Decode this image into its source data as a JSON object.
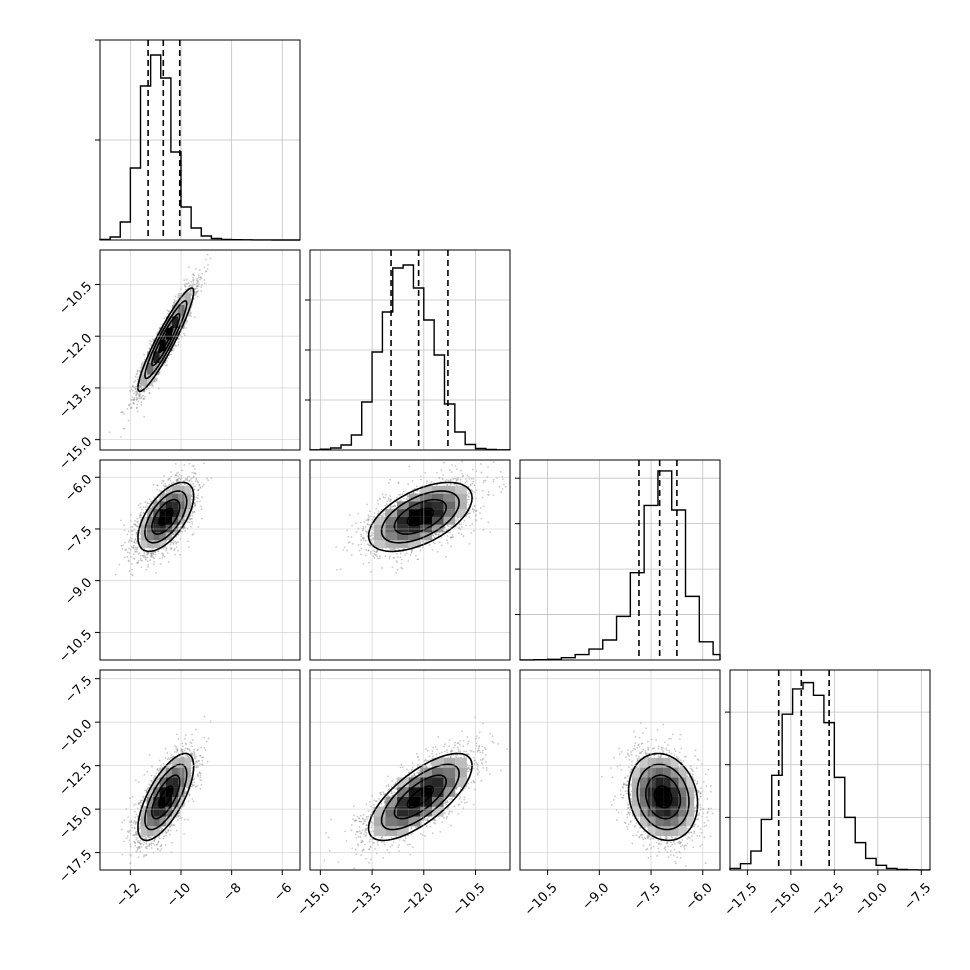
{
  "chart_data": {
    "type": "corner",
    "n_params": 4,
    "grid": true,
    "colors": {
      "ink": "#000000",
      "grid": "#c0c0c0",
      "samples": "#8a8a8a"
    },
    "params": [
      {
        "range": [
          -13.2,
          -5.3
        ],
        "ticks": [
          -12,
          -10,
          -8,
          -6
        ],
        "tick_labels": [
          "−12",
          "−10",
          "−8",
          "−6"
        ],
        "mean": -10.6,
        "sd": 0.55,
        "quantiles": [
          -11.3,
          -10.7,
          -10.05
        ]
      },
      {
        "range": [
          -15.3,
          -9.5
        ],
        "ticks": [
          -15.0,
          -13.5,
          -12.0,
          -10.5
        ],
        "tick_labels": [
          "−15.0",
          "−13.5",
          "−12.0",
          "−10.5"
        ],
        "mean": -12.1,
        "sd": 0.75,
        "quantiles": [
          -12.95,
          -12.15,
          -11.3
        ]
      },
      {
        "range": [
          -11.3,
          -5.5
        ],
        "ticks": [
          -10.5,
          -9.0,
          -7.5,
          -6.0
        ],
        "tick_labels": [
          "−10.5",
          "−9.0",
          "−7.5",
          "−6.0"
        ],
        "mean": -7.15,
        "sd": 0.5,
        "quantiles": [
          -7.85,
          -7.25,
          -6.75
        ]
      },
      {
        "range": [
          -18.5,
          -7.0
        ],
        "ticks": [
          -17.5,
          -15.0,
          -12.5,
          -10.0,
          -7.5
        ],
        "tick_labels": [
          "−17.5",
          "−15.0",
          "−12.5",
          "−10.0",
          "−7.5"
        ],
        "mean": -14.3,
        "sd": 1.25,
        "quantiles": [
          -15.7,
          -14.4,
          -12.8
        ]
      }
    ],
    "histograms": [
      {
        "param": 0,
        "edges": [
          -13.2,
          -12.8,
          -12.4,
          -12.0,
          -11.6,
          -11.2,
          -10.8,
          -10.4,
          -10.0,
          -9.6,
          -9.2,
          -8.8,
          -8.4,
          -8.0,
          -7.6,
          -7.2,
          -6.8,
          -6.4,
          -6.0,
          -5.6,
          -5.3
        ],
        "counts": [
          5,
          30,
          180,
          720,
          1540,
          1850,
          1620,
          880,
          330,
          120,
          40,
          15,
          6,
          3,
          2,
          1,
          1,
          0,
          0,
          0
        ],
        "ymax": 2000,
        "yticks": [
          1000,
          2000
        ]
      },
      {
        "param": 1,
        "edges": [
          -15.3,
          -15.0,
          -14.7,
          -14.4,
          -14.1,
          -13.8,
          -13.5,
          -13.2,
          -12.9,
          -12.6,
          -12.3,
          -12.0,
          -11.7,
          -11.4,
          -11.1,
          -10.8,
          -10.5,
          -10.2,
          -9.9,
          -9.5
        ],
        "counts": [
          2,
          8,
          20,
          50,
          150,
          480,
          980,
          1380,
          1820,
          1850,
          1620,
          1300,
          950,
          460,
          180,
          55,
          15,
          5,
          2
        ],
        "ymax": 2000,
        "yticks": [
          500,
          1000,
          1500
        ]
      },
      {
        "param": 2,
        "edges": [
          -11.3,
          -10.9,
          -10.5,
          -10.1,
          -9.7,
          -9.3,
          -8.9,
          -8.5,
          -8.1,
          -7.7,
          -7.3,
          -6.9,
          -6.5,
          -6.1,
          -5.7,
          -5.5
        ],
        "counts": [
          1,
          3,
          8,
          25,
          60,
          120,
          220,
          480,
          960,
          1700,
          2080,
          1650,
          700,
          200,
          60
        ],
        "ymax": 2200,
        "yticks": [
          500,
          1000,
          1500,
          2000
        ]
      },
      {
        "param": 3,
        "edges": [
          -18.5,
          -17.9,
          -17.3,
          -16.7,
          -16.1,
          -15.5,
          -14.9,
          -14.3,
          -13.7,
          -13.1,
          -12.5,
          -11.9,
          -11.3,
          -10.7,
          -10.1,
          -9.5,
          -8.9,
          -8.3,
          -7.7,
          -7.0
        ],
        "counts": [
          15,
          60,
          180,
          480,
          900,
          1480,
          1720,
          1780,
          1660,
          1400,
          880,
          500,
          260,
          110,
          45,
          15,
          5,
          2,
          1
        ],
        "ymax": 1900,
        "yticks": [
          500,
          1000,
          1500
        ]
      }
    ],
    "pairs": [
      {
        "x": 0,
        "y": 1,
        "rho": 0.93
      },
      {
        "x": 0,
        "y": 2,
        "rho": 0.6
      },
      {
        "x": 1,
        "y": 2,
        "rho": 0.55
      },
      {
        "x": 0,
        "y": 3,
        "rho": 0.7
      },
      {
        "x": 1,
        "y": 3,
        "rho": 0.72
      },
      {
        "x": 2,
        "y": 3,
        "rho": -0.15
      }
    ]
  }
}
